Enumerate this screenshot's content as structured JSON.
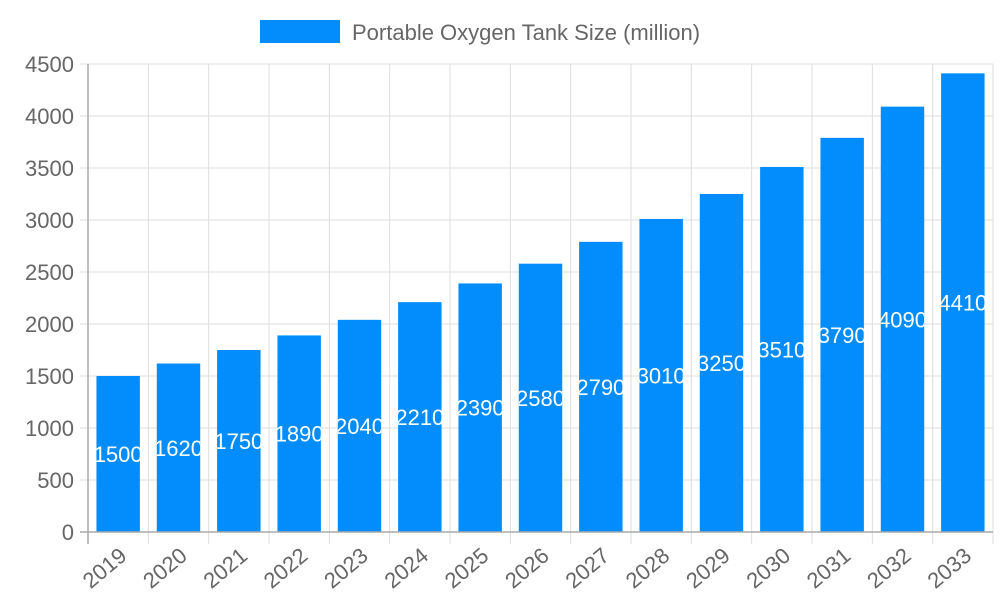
{
  "chart_data": {
    "type": "bar",
    "title": "",
    "xlabel": "",
    "ylabel": "",
    "categories": [
      "2019",
      "2020",
      "2021",
      "2022",
      "2023",
      "2024",
      "2025",
      "2026",
      "2027",
      "2028",
      "2029",
      "2030",
      "2031",
      "2032",
      "2033"
    ],
    "series": [
      {
        "name": "Portable Oxygen Tank Size (million)",
        "values": [
          1500,
          1620,
          1750,
          1890,
          2040,
          2210,
          2390,
          2580,
          2790,
          3010,
          3250,
          3510,
          3790,
          4090,
          4410
        ],
        "color": "#038cfc"
      }
    ],
    "ylim": [
      0,
      4500
    ],
    "yticks": [
      0,
      500,
      1000,
      1500,
      2000,
      2500,
      3000,
      3500,
      4000,
      4500
    ],
    "grid": true,
    "legend": "top",
    "data_labels": true,
    "data_label_color": "#ffffff"
  }
}
